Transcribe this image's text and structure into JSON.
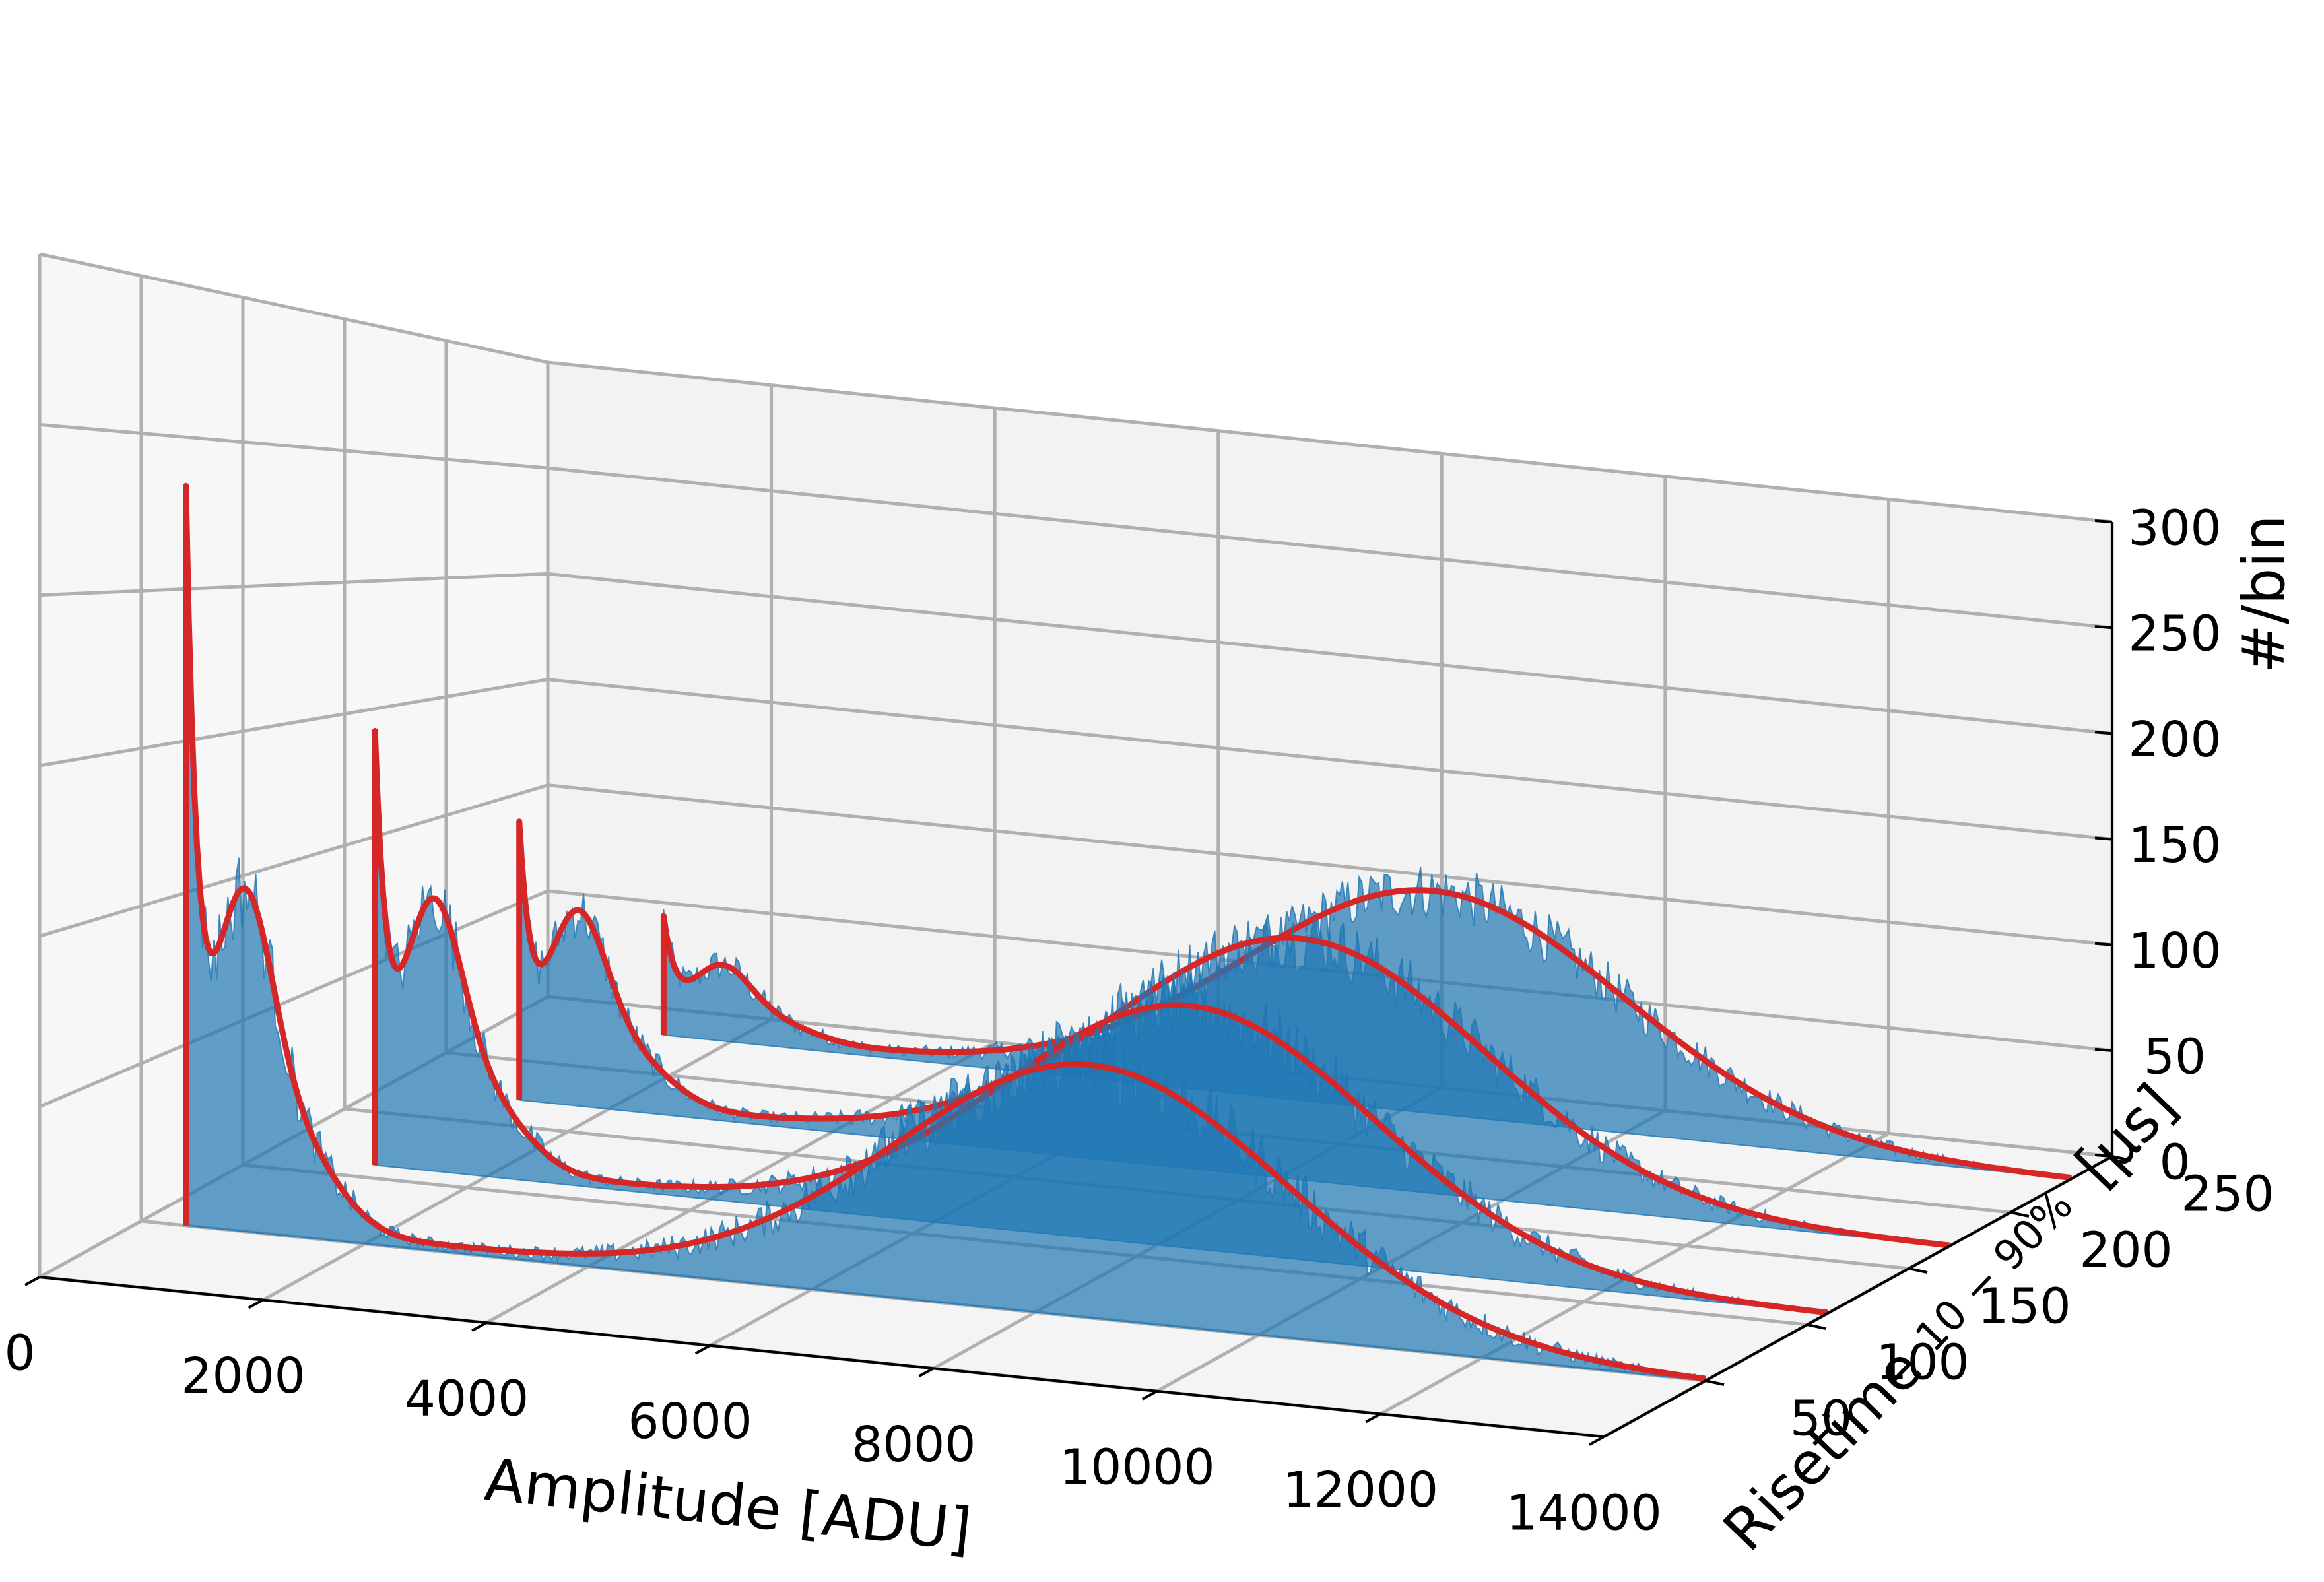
{
  "chart_data": {
    "type": "area",
    "projection": "3d",
    "title": "",
    "xlabel": "Amplitude [ADU]",
    "ylabel_main": "Risetime",
    "ylabel_sub": "10 − 90%",
    "ylabel_unit": "[µs]",
    "zlabel": "#/bin",
    "xlim": [
      0,
      14000
    ],
    "ylim": [
      0,
      250
    ],
    "zlim": [
      0,
      300
    ],
    "x_ticks": [
      "0",
      "2000",
      "4000",
      "6000",
      "8000",
      "10000",
      "12000",
      "14000"
    ],
    "y_ticks": [
      "50",
      "100",
      "150",
      "200",
      "250"
    ],
    "z_ticks": [
      "0",
      "50",
      "100",
      "150",
      "200",
      "250",
      "300"
    ],
    "grid": true,
    "colors": {
      "histogram": "#1f77b4",
      "fit": "#d62728",
      "pane": "#f2f2f2",
      "grid": "#b0b0b0"
    },
    "series": [
      {
        "risetime": 50,
        "x_start": 400,
        "low_peak": 215,
        "shoulder": 85,
        "main_peak_x": 8500,
        "main_peak": 80,
        "main_sigma": 1750
      },
      {
        "risetime": 110,
        "x_start": 1000,
        "low_peak": 135,
        "shoulder": 75,
        "main_peak_x": 8300,
        "main_peak": 85,
        "main_sigma": 1650
      },
      {
        "risetime": 170,
        "x_start": 1200,
        "low_peak": 95,
        "shoulder": 60,
        "main_peak_x": 8200,
        "main_peak": 95,
        "main_sigma": 1650
      },
      {
        "risetime": 230,
        "x_start": 1400,
        "low_peak": 45,
        "shoulder": 25,
        "main_peak_x": 8300,
        "main_peak": 100,
        "main_sigma": 1700
      }
    ]
  }
}
